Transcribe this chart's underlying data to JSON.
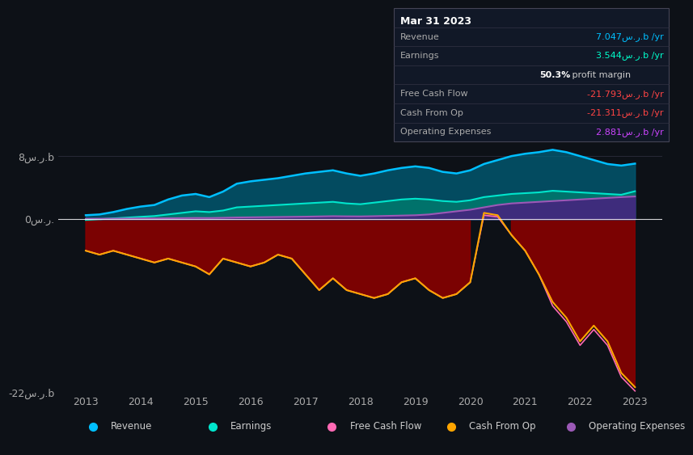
{
  "background_color": "#0d1117",
  "ylim": [
    -22,
    9
  ],
  "yticks": [
    -22,
    0,
    8
  ],
  "ytick_labels": [
    "-22س.ر.b",
    "0س.ر.",
    "8س.ر.b"
  ],
  "xtick_years": [
    2013,
    2014,
    2015,
    2016,
    2017,
    2018,
    2019,
    2020,
    2021,
    2022,
    2023
  ],
  "colors": {
    "revenue": "#00bfff",
    "earnings": "#00e5cc",
    "free_cash_flow": "#ff69b4",
    "cash_from_op": "#ffa500",
    "operating_expenses": "#9b59b6",
    "fill_revenue": "#005f7a",
    "fill_earnings": "#007a6e",
    "fill_opex": "#4a2080",
    "fill_cashop_neg": "#8b0000",
    "fill_cashop_pos": "#cc4444"
  },
  "legend": [
    {
      "label": "Revenue",
      "color": "#00bfff"
    },
    {
      "label": "Earnings",
      "color": "#00e5cc"
    },
    {
      "label": "Free Cash Flow",
      "color": "#ff69b4"
    },
    {
      "label": "Cash From Op",
      "color": "#ffa500"
    },
    {
      "label": "Operating Expenses",
      "color": "#9b59b6"
    }
  ],
  "revenue": [
    0.5,
    0.6,
    0.9,
    1.3,
    1.6,
    1.8,
    2.5,
    3.0,
    3.2,
    2.8,
    3.5,
    4.5,
    4.8,
    5.0,
    5.2,
    5.5,
    5.8,
    6.0,
    6.2,
    5.8,
    5.5,
    5.8,
    6.2,
    6.5,
    6.7,
    6.5,
    6.0,
    5.8,
    6.2,
    7.0,
    7.5,
    8.0,
    8.3,
    8.5,
    8.8,
    8.5,
    8.0,
    7.5,
    7.0,
    6.8,
    7.047
  ],
  "earnings": [
    -0.1,
    0.0,
    0.1,
    0.2,
    0.3,
    0.4,
    0.6,
    0.8,
    1.0,
    0.9,
    1.1,
    1.5,
    1.6,
    1.7,
    1.8,
    1.9,
    2.0,
    2.1,
    2.2,
    2.0,
    1.9,
    2.1,
    2.3,
    2.5,
    2.6,
    2.5,
    2.3,
    2.2,
    2.4,
    2.8,
    3.0,
    3.2,
    3.3,
    3.4,
    3.6,
    3.5,
    3.4,
    3.3,
    3.2,
    3.1,
    3.544
  ],
  "free_cash_flow": [
    -4.0,
    -4.5,
    -4.0,
    -4.5,
    -5.0,
    -5.5,
    -5.0,
    -5.5,
    -6.0,
    -7.0,
    -5.0,
    -5.5,
    -6.0,
    -5.5,
    -4.5,
    -5.0,
    -7.0,
    -9.0,
    -7.5,
    -9.0,
    -9.5,
    -10.0,
    -9.5,
    -8.0,
    -7.5,
    -9.0,
    -10.0,
    -9.5,
    -8.0,
    0.5,
    0.3,
    -2.0,
    -4.0,
    -7.0,
    -11.0,
    -13.0,
    -16.0,
    -14.0,
    -16.0,
    -20.0,
    -21.793
  ],
  "cash_from_op": [
    -4.0,
    -4.5,
    -4.0,
    -4.5,
    -5.0,
    -5.5,
    -5.0,
    -5.5,
    -6.0,
    -7.0,
    -5.0,
    -5.5,
    -6.0,
    -5.5,
    -4.5,
    -5.0,
    -7.0,
    -9.0,
    -7.5,
    -9.0,
    -9.5,
    -10.0,
    -9.5,
    -8.0,
    -7.5,
    -9.0,
    -10.0,
    -9.5,
    -8.0,
    0.8,
    0.5,
    -2.0,
    -4.0,
    -7.0,
    -10.5,
    -12.5,
    -15.5,
    -13.5,
    -15.5,
    -19.5,
    -21.311
  ],
  "operating_expenses": [
    0.05,
    0.06,
    0.07,
    0.08,
    0.09,
    0.1,
    0.12,
    0.14,
    0.16,
    0.15,
    0.18,
    0.22,
    0.24,
    0.26,
    0.28,
    0.3,
    0.32,
    0.35,
    0.38,
    0.36,
    0.35,
    0.38,
    0.42,
    0.46,
    0.5,
    0.6,
    0.8,
    1.0,
    1.2,
    1.5,
    1.8,
    2.0,
    2.1,
    2.2,
    2.3,
    2.4,
    2.5,
    2.6,
    2.7,
    2.8,
    2.881
  ]
}
